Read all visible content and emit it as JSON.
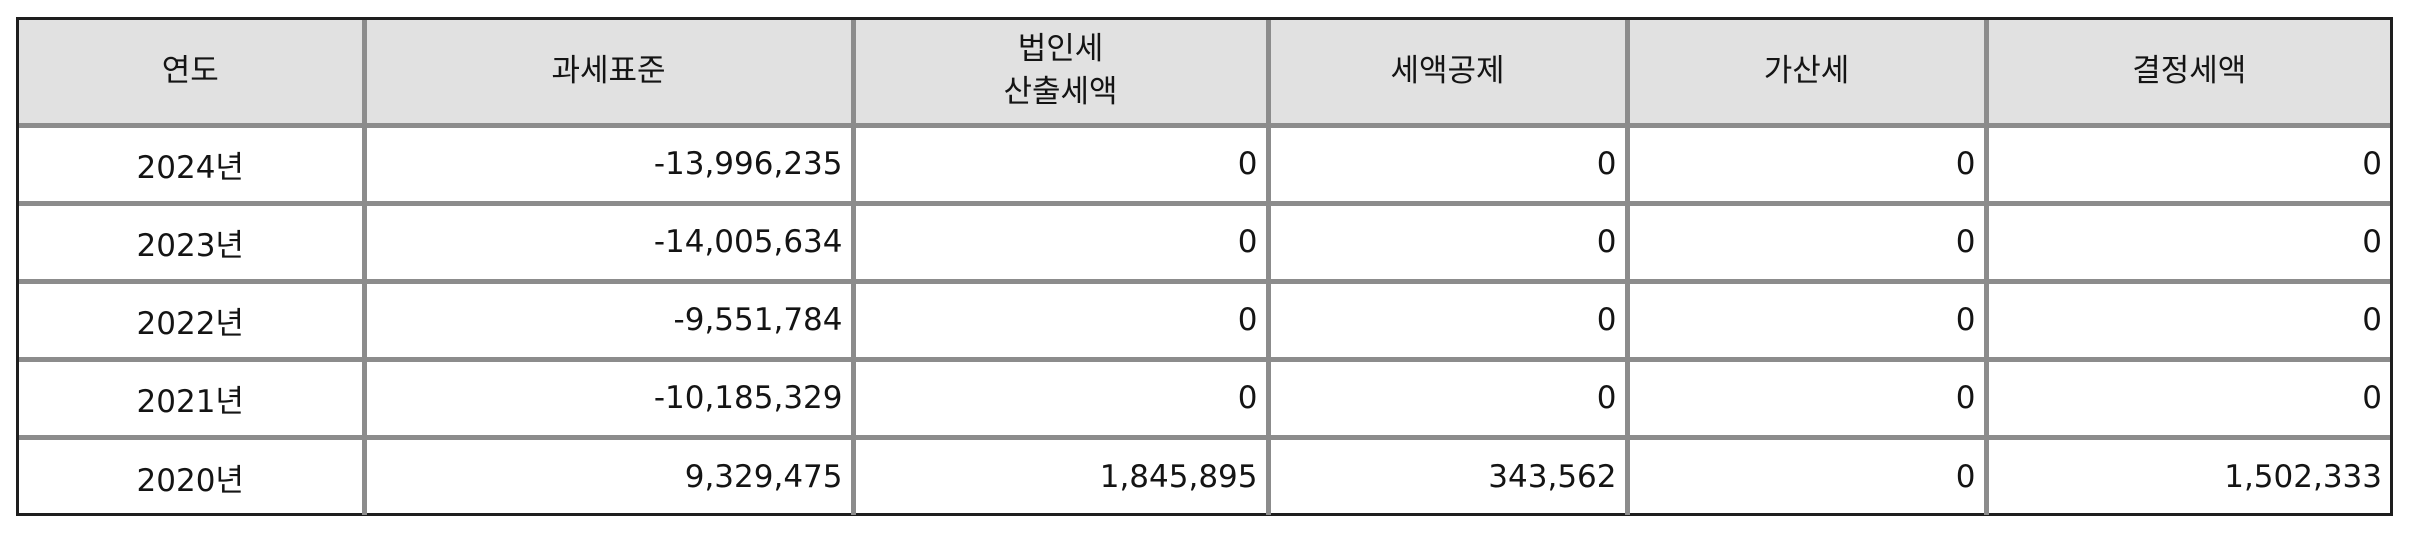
{
  "table": {
    "headers": [
      {
        "lines": [
          "연도"
        ]
      },
      {
        "lines": [
          "과세표준"
        ]
      },
      {
        "lines": [
          "법인세",
          "산출세액"
        ]
      },
      {
        "lines": [
          "세액공제"
        ]
      },
      {
        "lines": [
          "가산세"
        ]
      },
      {
        "lines": [
          "결정세액"
        ]
      }
    ],
    "rows": [
      {
        "year": "2024년",
        "tax_base": "-13,996,235",
        "calculated_tax": "0",
        "tax_credit": "0",
        "penalty_tax": "0",
        "determined_tax": "0"
      },
      {
        "year": "2023년",
        "tax_base": "-14,005,634",
        "calculated_tax": "0",
        "tax_credit": "0",
        "penalty_tax": "0",
        "determined_tax": "0"
      },
      {
        "year": "2022년",
        "tax_base": "-9,551,784",
        "calculated_tax": "0",
        "tax_credit": "0",
        "penalty_tax": "0",
        "determined_tax": "0"
      },
      {
        "year": "2021년",
        "tax_base": "-10,185,329",
        "calculated_tax": "0",
        "tax_credit": "0",
        "penalty_tax": "0",
        "determined_tax": "0"
      },
      {
        "year": "2020년",
        "tax_base": "9,329,475",
        "calculated_tax": "1,845,895",
        "tax_credit": "343,562",
        "penalty_tax": "0",
        "determined_tax": "1,502,333"
      }
    ]
  },
  "colors": {
    "header_background": "#e1e1e1",
    "grid_line": "#8c8c8c",
    "outer_border": "#1e1e1e",
    "text": "#141414"
  }
}
